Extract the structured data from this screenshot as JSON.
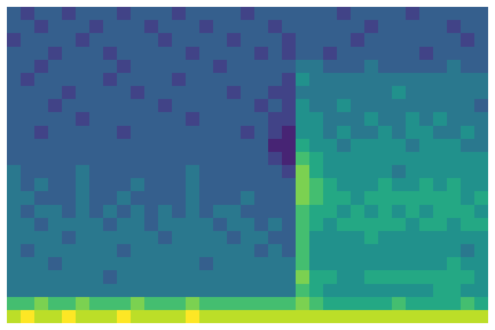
{
  "chart_data": {
    "type": "heatmap",
    "color": "Viridis",
    "color_range": [
      0,
      10
    ],
    "tick_labels": false,
    "cells": [
      [
        3,
        2,
        3,
        3,
        2,
        3,
        3,
        3,
        2,
        3,
        3,
        3,
        2,
        3,
        3,
        3,
        3,
        2,
        3,
        3,
        3,
        3,
        3,
        3,
        2,
        3,
        3,
        3,
        3,
        2,
        3,
        3,
        3,
        3,
        3
      ],
      [
        3,
        3,
        2,
        3,
        3,
        3,
        2,
        3,
        3,
        3,
        2,
        3,
        3,
        3,
        2,
        3,
        3,
        3,
        3,
        2,
        3,
        3,
        3,
        3,
        3,
        3,
        2,
        3,
        3,
        3,
        3,
        3,
        2,
        3,
        3
      ],
      [
        2,
        3,
        3,
        3,
        3,
        2,
        3,
        3,
        3,
        3,
        3,
        2,
        3,
        3,
        3,
        3,
        2,
        3,
        3,
        3,
        2,
        3,
        3,
        3,
        3,
        2,
        3,
        3,
        3,
        3,
        3,
        3,
        3,
        2,
        3
      ],
      [
        3,
        3,
        3,
        2,
        3,
        3,
        3,
        2,
        3,
        3,
        3,
        3,
        3,
        2,
        3,
        3,
        3,
        3,
        2,
        3,
        2,
        3,
        3,
        2,
        3,
        3,
        3,
        3,
        3,
        3,
        2,
        3,
        3,
        3,
        3
      ],
      [
        3,
        3,
        2,
        3,
        3,
        3,
        3,
        3,
        2,
        3,
        3,
        3,
        3,
        3,
        3,
        2,
        3,
        3,
        3,
        3,
        3,
        4,
        4,
        3,
        3,
        3,
        4,
        3,
        3,
        3,
        3,
        3,
        4,
        3,
        3
      ],
      [
        3,
        2,
        3,
        3,
        3,
        3,
        3,
        2,
        3,
        3,
        3,
        3,
        2,
        3,
        3,
        3,
        3,
        3,
        3,
        3,
        2,
        5,
        4,
        4,
        4,
        4,
        4,
        4,
        4,
        4,
        4,
        4,
        4,
        4,
        4
      ],
      [
        3,
        3,
        3,
        3,
        2,
        3,
        3,
        3,
        3,
        2,
        3,
        3,
        3,
        3,
        3,
        3,
        2,
        3,
        3,
        2,
        2,
        4,
        4,
        4,
        4,
        4,
        4,
        4,
        5,
        4,
        4,
        4,
        4,
        4,
        4
      ],
      [
        3,
        3,
        3,
        2,
        3,
        3,
        3,
        3,
        3,
        3,
        3,
        2,
        3,
        3,
        3,
        3,
        3,
        3,
        2,
        3,
        2,
        5,
        4,
        4,
        5,
        4,
        4,
        4,
        4,
        4,
        4,
        4,
        4,
        4,
        3
      ],
      [
        3,
        3,
        3,
        3,
        3,
        2,
        3,
        3,
        3,
        3,
        3,
        3,
        3,
        2,
        3,
        3,
        3,
        3,
        3,
        2,
        2,
        5,
        5,
        4,
        4,
        4,
        5,
        4,
        4,
        5,
        4,
        5,
        4,
        4,
        4
      ],
      [
        3,
        3,
        2,
        3,
        3,
        3,
        3,
        3,
        2,
        3,
        3,
        3,
        3,
        3,
        3,
        3,
        3,
        2,
        3,
        2,
        1,
        5,
        5,
        4,
        5,
        4,
        4,
        5,
        4,
        5,
        5,
        4,
        4,
        5,
        4
      ],
      [
        3,
        3,
        3,
        3,
        3,
        3,
        3,
        3,
        3,
        3,
        3,
        3,
        3,
        3,
        3,
        3,
        3,
        3,
        3,
        1,
        1,
        6,
        5,
        5,
        4,
        5,
        5,
        5,
        5,
        4,
        5,
        5,
        5,
        4,
        4
      ],
      [
        3,
        3,
        3,
        3,
        3,
        3,
        3,
        3,
        3,
        3,
        3,
        3,
        3,
        3,
        3,
        3,
        3,
        3,
        3,
        2,
        1,
        7,
        6,
        5,
        5,
        5,
        5,
        5,
        5,
        5,
        5,
        5,
        5,
        5,
        5
      ],
      [
        4,
        3,
        3,
        3,
        3,
        4,
        3,
        3,
        3,
        3,
        3,
        3,
        3,
        4,
        3,
        3,
        3,
        3,
        3,
        3,
        2,
        8,
        6,
        5,
        5,
        5,
        5,
        5,
        4,
        5,
        5,
        5,
        5,
        5,
        5
      ],
      [
        4,
        3,
        4,
        3,
        3,
        4,
        3,
        3,
        3,
        4,
        3,
        3,
        3,
        4,
        3,
        3,
        3,
        3,
        3,
        3,
        3,
        8,
        7,
        6,
        5,
        5,
        5,
        6,
        5,
        5,
        6,
        5,
        6,
        5,
        5
      ],
      [
        4,
        4,
        3,
        3,
        3,
        4,
        3,
        3,
        4,
        3,
        3,
        3,
        3,
        4,
        3,
        3,
        3,
        4,
        3,
        3,
        3,
        8,
        7,
        6,
        6,
        5,
        6,
        6,
        6,
        6,
        6,
        6,
        6,
        5,
        6
      ],
      [
        4,
        3,
        4,
        4,
        3,
        4,
        3,
        4,
        3,
        4,
        3,
        4,
        3,
        4,
        3,
        4,
        4,
        3,
        3,
        3,
        3,
        7,
        6,
        6,
        5,
        6,
        5,
        6,
        5,
        6,
        5,
        6,
        6,
        6,
        5
      ],
      [
        4,
        4,
        3,
        4,
        4,
        4,
        4,
        3,
        4,
        4,
        3,
        4,
        4,
        4,
        4,
        3,
        4,
        4,
        3,
        4,
        3,
        7,
        6,
        5,
        6,
        6,
        6,
        6,
        6,
        5,
        6,
        6,
        5,
        6,
        6
      ],
      [
        4,
        4,
        4,
        4,
        3,
        4,
        4,
        4,
        4,
        4,
        4,
        3,
        4,
        4,
        4,
        4,
        3,
        4,
        4,
        3,
        3,
        7,
        5,
        5,
        5,
        5,
        6,
        5,
        5,
        5,
        5,
        5,
        5,
        5,
        5
      ],
      [
        4,
        3,
        4,
        4,
        4,
        4,
        4,
        4,
        3,
        4,
        4,
        4,
        4,
        4,
        4,
        4,
        4,
        4,
        3,
        4,
        3,
        7,
        5,
        5,
        5,
        5,
        5,
        5,
        5,
        5,
        5,
        5,
        5,
        4,
        5
      ],
      [
        4,
        4,
        4,
        3,
        4,
        4,
        4,
        4,
        4,
        4,
        4,
        4,
        4,
        4,
        3,
        4,
        4,
        4,
        4,
        4,
        4,
        7,
        5,
        5,
        5,
        5,
        5,
        5,
        5,
        5,
        5,
        5,
        6,
        5,
        5
      ],
      [
        4,
        4,
        4,
        4,
        4,
        4,
        4,
        3,
        4,
        4,
        4,
        4,
        4,
        4,
        4,
        4,
        4,
        4,
        4,
        4,
        4,
        8,
        6,
        6,
        5,
        5,
        6,
        6,
        6,
        6,
        6,
        6,
        6,
        6,
        5
      ],
      [
        4,
        4,
        4,
        4,
        4,
        4,
        4,
        4,
        4,
        4,
        4,
        4,
        4,
        4,
        4,
        4,
        4,
        4,
        4,
        4,
        4,
        7,
        6,
        5,
        5,
        5,
        5,
        5,
        5,
        5,
        5,
        6,
        6,
        5,
        5
      ],
      [
        7,
        7,
        8,
        7,
        7,
        8,
        7,
        7,
        7,
        8,
        7,
        7,
        7,
        8,
        7,
        7,
        7,
        7,
        7,
        7,
        7,
        8,
        7,
        6,
        6,
        6,
        6,
        6,
        7,
        6,
        6,
        6,
        6,
        7,
        6
      ],
      [
        9,
        10,
        9,
        9,
        10,
        9,
        9,
        9,
        10,
        9,
        9,
        9,
        9,
        10,
        9,
        9,
        9,
        9,
        9,
        9,
        9,
        9,
        9,
        9,
        9,
        9,
        9,
        9,
        9,
        9,
        9,
        9,
        9,
        9,
        9
      ]
    ]
  }
}
